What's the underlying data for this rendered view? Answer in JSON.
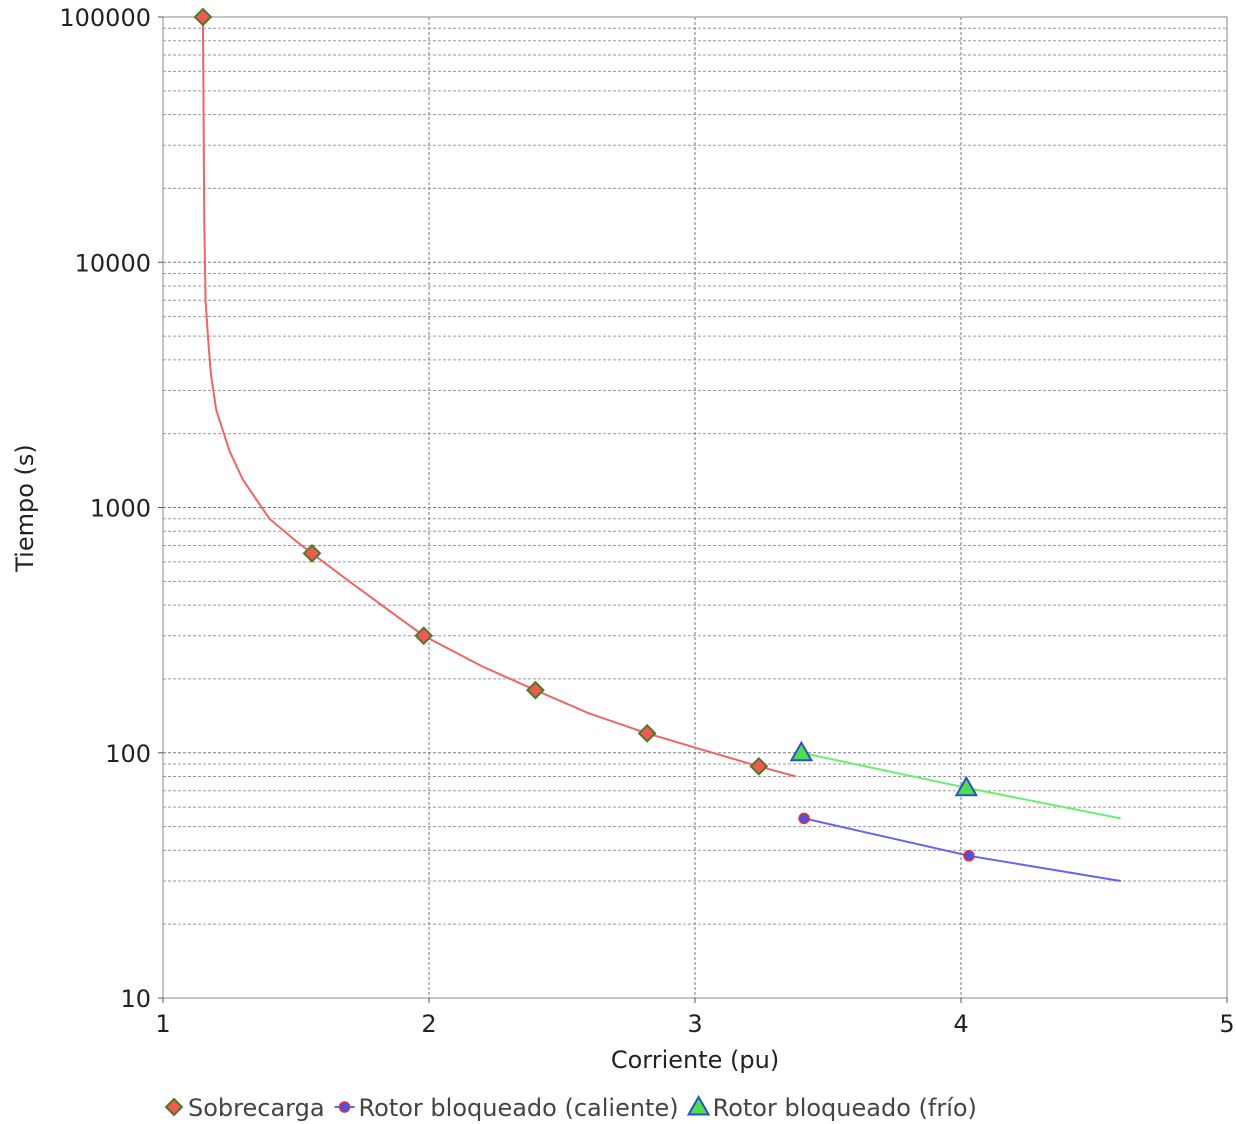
{
  "chart_data": {
    "type": "line",
    "title": "",
    "xlabel": "Corriente (pu)",
    "ylabel": "Tiempo (s)",
    "x_scale": "linear",
    "y_scale": "log",
    "xlim": [
      1,
      5
    ],
    "ylim": [
      10,
      100000
    ],
    "x_ticks": [
      "1",
      "2",
      "3",
      "4",
      "5"
    ],
    "y_ticks": [
      "10",
      "100",
      "1000",
      "10000",
      "100000"
    ],
    "grid": true,
    "legend_position": "bottom",
    "series": [
      {
        "name": "Sobrecarga",
        "marker": "diamond",
        "line_color": "#f06464",
        "marker_fill": "#f05a50",
        "marker_edge": "#4a7a2a",
        "curve": {
          "x": [
            1.15,
            1.152,
            1.155,
            1.16,
            1.17,
            1.18,
            1.2,
            1.25,
            1.3,
            1.4,
            1.5,
            1.56,
            1.7,
            1.85,
            1.98,
            2.2,
            2.4,
            2.6,
            2.82,
            3.0,
            3.24,
            3.38
          ],
          "y": [
            100000,
            50000,
            15000,
            7000,
            4800,
            3500,
            2500,
            1700,
            1300,
            900,
            730,
            650,
            500,
            380,
            300,
            225,
            180,
            145,
            120,
            105,
            88,
            80
          ]
        },
        "markers": {
          "x": [
            1.15,
            1.56,
            1.98,
            2.4,
            2.82,
            3.24
          ],
          "y": [
            100000,
            650,
            300,
            180,
            120,
            88
          ]
        }
      },
      {
        "name": "Rotor bloqueado (caliente)",
        "marker": "circle",
        "line_color": "#6464f0",
        "marker_fill": "#5050e0",
        "marker_edge": "#e03030",
        "curve": {
          "x": [
            3.41,
            4.03,
            4.6
          ],
          "y": [
            54,
            38,
            30
          ]
        },
        "markers": {
          "x": [
            3.41,
            4.03
          ],
          "y": [
            54,
            38
          ]
        }
      },
      {
        "name": "Rotor bloqueado (frío)",
        "marker": "triangle",
        "line_color": "#6cf06c",
        "marker_fill": "#4ce04c",
        "marker_edge": "#3050c0",
        "curve": {
          "x": [
            3.4,
            4.02,
            4.6
          ],
          "y": [
            100,
            72,
            54
          ]
        },
        "markers": {
          "x": [
            3.4,
            4.02
          ],
          "y": [
            100,
            72
          ]
        }
      }
    ]
  }
}
